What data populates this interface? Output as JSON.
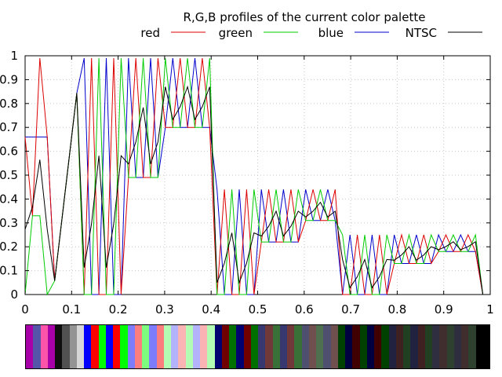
{
  "chart_data": {
    "type": "line",
    "title": "R,G,B profiles of the current color palette",
    "xlim": [
      0,
      1
    ],
    "ylim": [
      0,
      1
    ],
    "xticks": [
      0,
      0.1,
      0.2,
      0.3,
      0.4,
      0.5,
      0.6,
      0.7,
      0.8,
      0.9,
      1
    ],
    "yticks": [
      0,
      0.1,
      0.2,
      0.3,
      0.4,
      0.5,
      0.6,
      0.7,
      0.8,
      0.9,
      1
    ],
    "xtick_labels": [
      "0",
      "0.1",
      "0.2",
      "0.3",
      "0.4",
      "0.5",
      "0.6",
      "0.7",
      "0.8",
      "0.9",
      "1"
    ],
    "ytick_labels": [
      "0",
      "0.1",
      "0.2",
      "0.3",
      "0.4",
      "0.5",
      "0.6",
      "0.7",
      "0.8",
      "0.9",
      "1"
    ],
    "grid": true,
    "legend_position": "top",
    "series": [
      {
        "name": "red",
        "color": "#dd0000"
      },
      {
        "name": "green",
        "color": "#00cc00"
      },
      {
        "name": "blue",
        "color": "#0000cc"
      },
      {
        "name": "NTSC",
        "color": "#000000"
      }
    ]
  }
}
